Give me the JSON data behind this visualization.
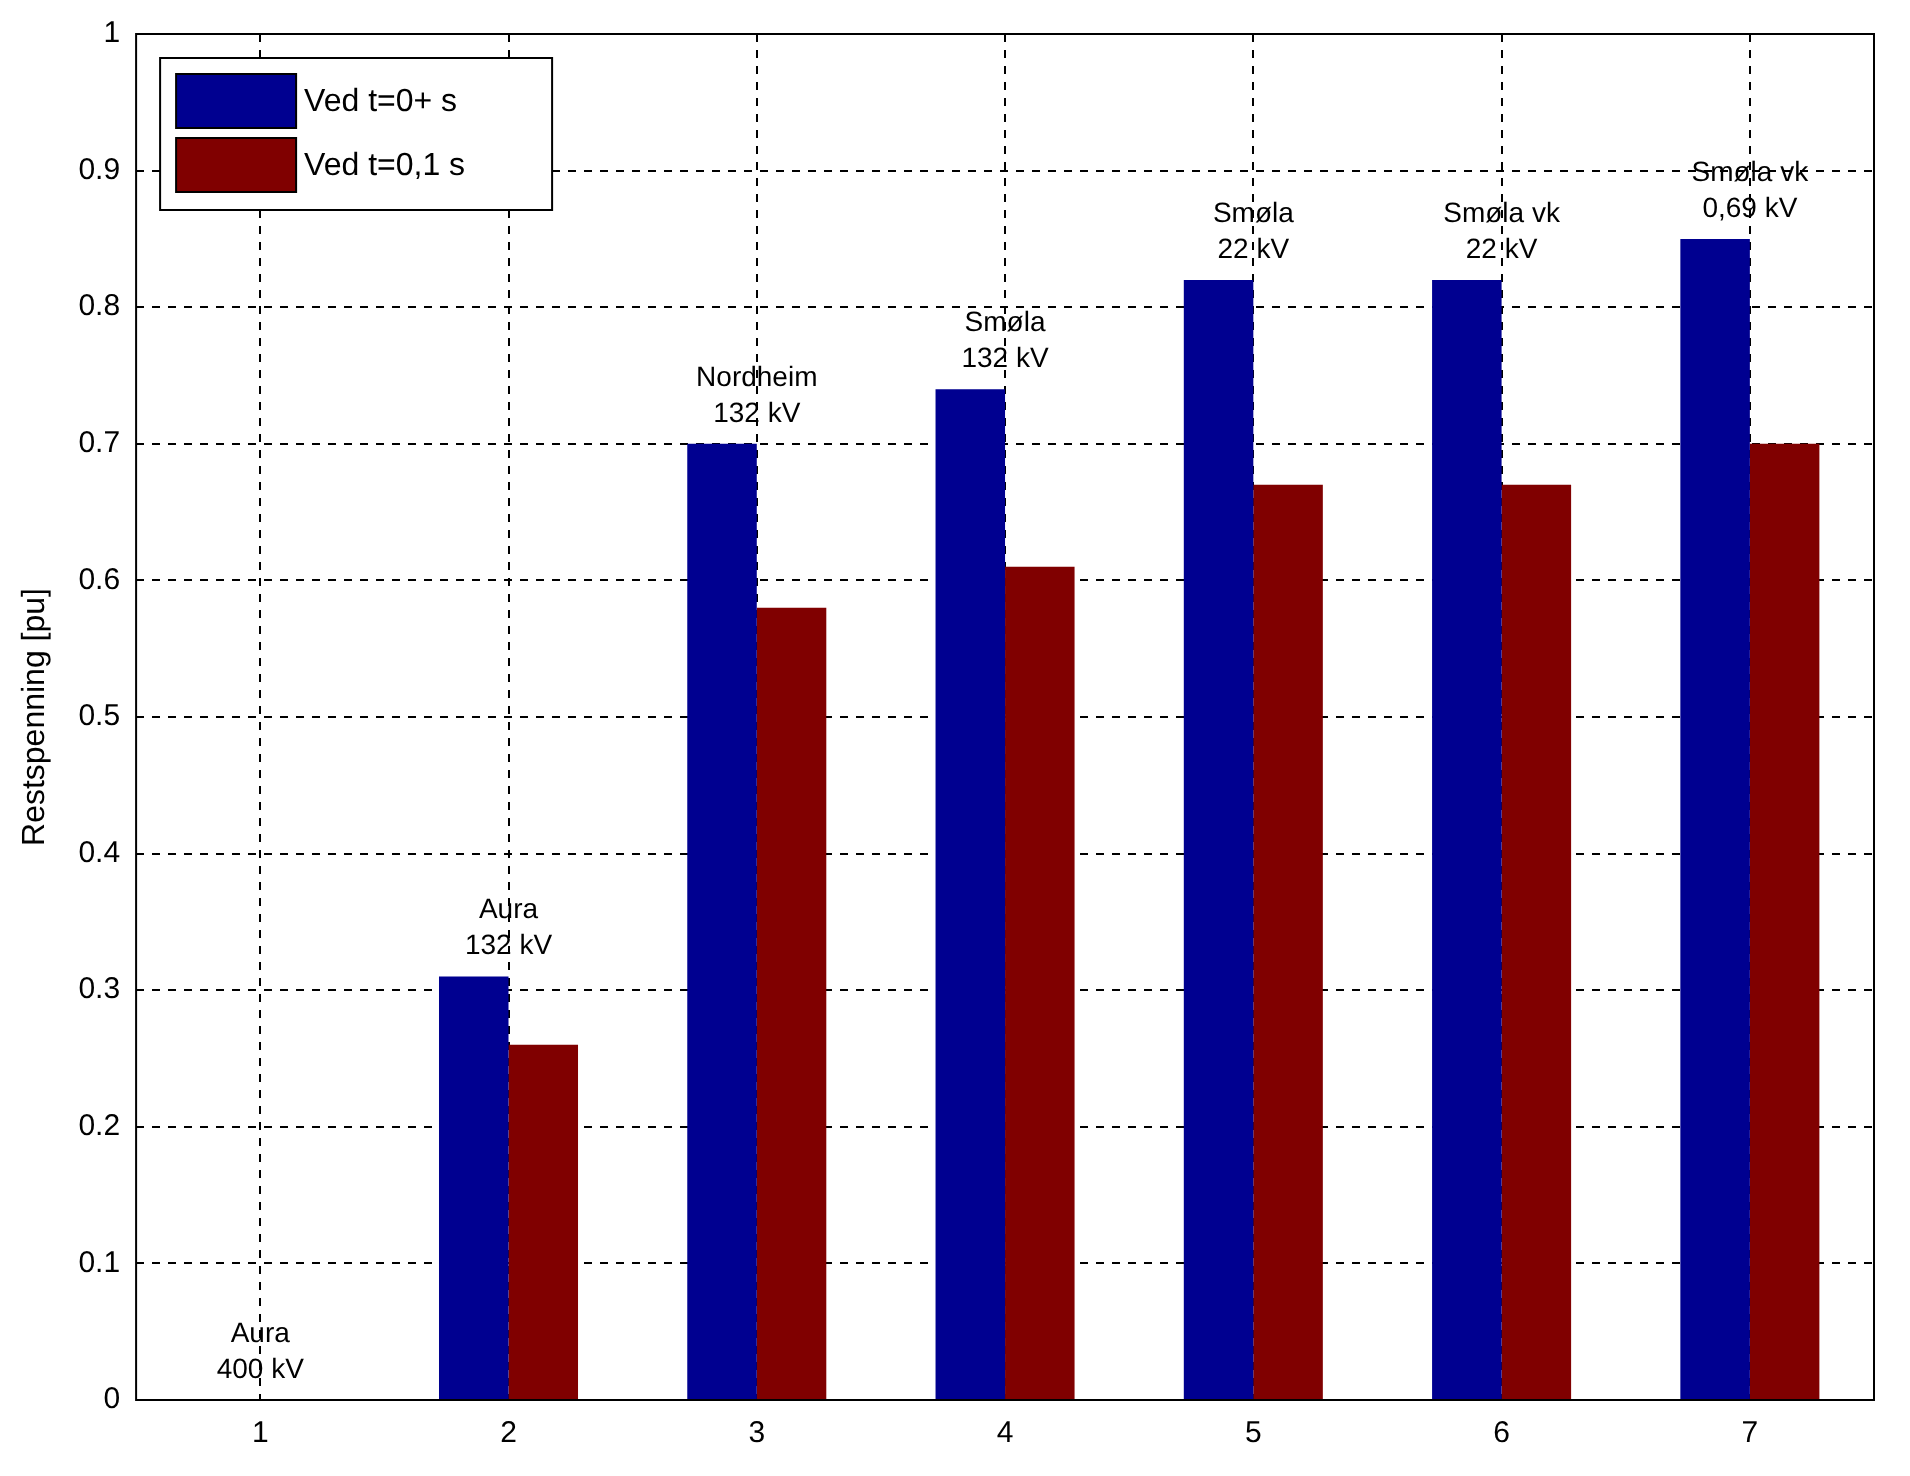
{
  "chart_data": {
    "type": "bar",
    "ylabel": "Restspenning [pu]",
    "categories": [
      "1",
      "2",
      "3",
      "4",
      "5",
      "6",
      "7"
    ],
    "series": [
      {
        "name": "Ved t=0+ s",
        "color": "#000090",
        "values": [
          0,
          0.31,
          0.7,
          0.74,
          0.82,
          0.82,
          0.85
        ]
      },
      {
        "name": "Ved t=0,1 s",
        "color": "#800000",
        "values": [
          0,
          0.26,
          0.58,
          0.61,
          0.67,
          0.67,
          0.7
        ]
      }
    ],
    "ylim": [
      0,
      1
    ],
    "yticks": [
      0,
      0.1,
      0.2,
      0.3,
      0.4,
      0.5,
      0.6,
      0.7,
      0.8,
      0.9,
      1
    ],
    "grid": true,
    "legend": "top left",
    "annotations": [
      {
        "text": "Aura\n400 kV",
        "x": "1",
        "y": 0
      },
      {
        "text": "Aura\n132 kV",
        "x": "2",
        "y": 0.31
      },
      {
        "text": "Nordheim\n132 kV",
        "x": "3",
        "y": 0.7
      },
      {
        "text": "Smøla\n132 kV",
        "x": "4",
        "y": 0.74
      },
      {
        "text": "Smøla\n22 kV",
        "x": "5",
        "y": 0.82
      },
      {
        "text": "Smøla vk\n22 kV",
        "x": "6",
        "y": 0.82
      },
      {
        "text": "Smøla vk\n0,69 kV",
        "x": "7",
        "y": 0.85
      }
    ]
  }
}
